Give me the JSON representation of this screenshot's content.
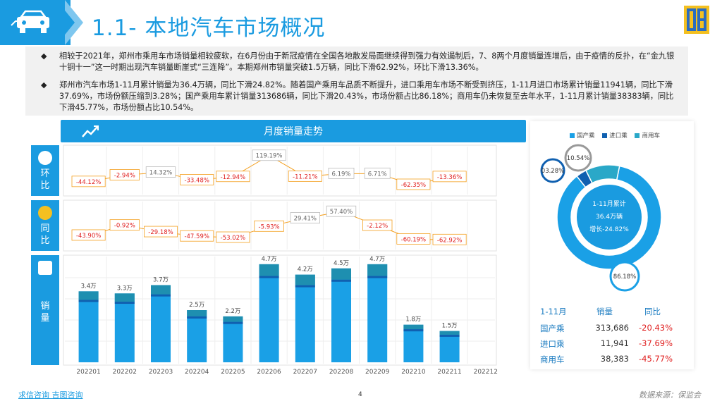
{
  "header": {
    "title": "1.1- 本地汽车市场概况"
  },
  "summary": {
    "bullets": [
      "相较于2021年，郑州市乘用车市场销量相较疲软，在6月份由于新冠疫情在全国各地散发局面继续得到强力有效遏制后，7、8两个月度销量连增后，由于疫情的反扑，在“金九银十铜十一”这一时期出现汽车销量断崖式“三连降”。本期郑州市销量突破1.5万辆，同比下滑62.92%，环比下滑13.36%。",
      "郑州市汽车市场1-11月累计销量为36.4万辆，同比下滑24.82%。随着国产乘用车品质不断提升，进口乘用车市场不断受到挤压，1-11月进口市场累计销量11941辆，同比下滑37.69%，市场份额压缩到3.28%；国产乘用车累计销量313686辆，同比下滑20.43%，市场份额占比86.18%；商用车仍未恢复至去年水平，1-11月累计销量38383辆，同比下滑45.77%，市场份额占比10.54%。"
    ]
  },
  "chart_panel": {
    "title": "月度销量走势",
    "side_labels": [
      "环\n比",
      "同\n比",
      "销\n量"
    ]
  },
  "chart_data": [
    {
      "type": "line",
      "name_label": "环比",
      "categories": [
        "202201",
        "202202",
        "202203",
        "202204",
        "202205",
        "202206",
        "202207",
        "202208",
        "202209",
        "202210",
        "202211",
        "202212"
      ],
      "values": [
        -44.12,
        -2.94,
        14.32,
        -33.48,
        -12.94,
        119.19,
        -11.21,
        6.19,
        6.71,
        -62.35,
        -13.36,
        null
      ],
      "labels": [
        "-44.12%",
        "-2.94%",
        "14.32%",
        "-33.48%",
        "-12.94%",
        "119.19%",
        "-11.21%",
        "6.19%",
        "6.71%",
        "-62.35%",
        "-13.36%",
        ""
      ]
    },
    {
      "type": "line",
      "name_label": "同比",
      "categories": [
        "202201",
        "202202",
        "202203",
        "202204",
        "202205",
        "202206",
        "202207",
        "202208",
        "202209",
        "202210",
        "202211",
        "202212"
      ],
      "values": [
        -43.9,
        -0.92,
        -29.18,
        -47.59,
        -53.02,
        -5.93,
        29.41,
        57.4,
        -2.12,
        -60.19,
        -62.92,
        null
      ],
      "labels": [
        "-43.90%",
        "-0.92%",
        "-29.18%",
        "-47.59%",
        "-53.02%",
        "-5.93%",
        "29.41%",
        "57.40%",
        "-2.12%",
        "-60.19%",
        "-62.92%",
        ""
      ]
    },
    {
      "type": "bar",
      "name_label": "销量",
      "categories": [
        "202201",
        "202202",
        "202203",
        "202204",
        "202205",
        "202206",
        "202207",
        "202208",
        "202209",
        "202210",
        "202211",
        "202212"
      ],
      "values": [
        3.4,
        3.3,
        3.7,
        2.5,
        2.2,
        4.7,
        4.2,
        4.5,
        4.7,
        1.8,
        1.5,
        null
      ],
      "labels": [
        "3.4万",
        "3.3万",
        "3.7万",
        "2.5万",
        "2.2万",
        "4.7万",
        "4.2万",
        "4.5万",
        "4.7万",
        "1.8万",
        "1.5万",
        ""
      ],
      "ylim": [
        0,
        5
      ]
    },
    {
      "type": "pie",
      "legend": [
        "国产乘",
        "进口乘",
        "商用车"
      ],
      "values": [
        86.18,
        3.28,
        10.54
      ],
      "labels": [
        "86.18%",
        "03.28%",
        "10.54%"
      ],
      "center_text": [
        "1-11月累计",
        "36.4万辆",
        "增长-24.82%"
      ],
      "colors": [
        "#1aa0e6",
        "#1060b0",
        "#2aa8c8"
      ]
    }
  ],
  "table": {
    "headers": [
      "1-11月",
      "销量",
      "同比"
    ],
    "rows": [
      {
        "name": "国产乘",
        "sales": "313,686",
        "yoy": "-20.43%"
      },
      {
        "name": "进口乘",
        "sales": "11,941",
        "yoy": "-37.69%"
      },
      {
        "name": "商用车",
        "sales": "38,383",
        "yoy": "-45.77%"
      }
    ]
  },
  "footer": {
    "links": "求信咨询  吉图咨询",
    "page": "4",
    "source": "数据来源：保监会"
  },
  "colors": {
    "accent": "#1a9be0",
    "red": "#e02020"
  }
}
